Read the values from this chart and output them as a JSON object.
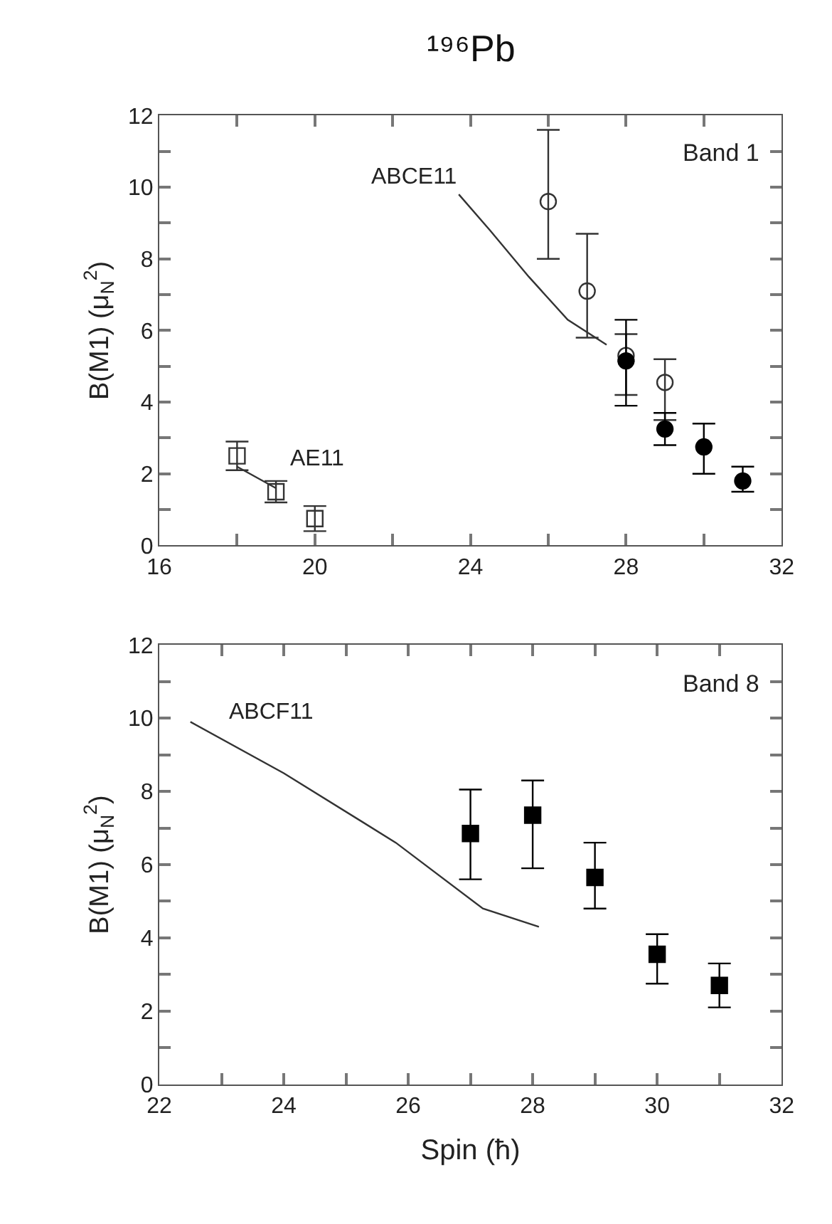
{
  "chart_data": [
    {
      "type": "scatter",
      "title": "¹⁹⁶Pb",
      "ylabel": "B(M1) (μ$_{N}$$^{2}$)",
      "xlim": [
        16,
        32
      ],
      "ylim": [
        0,
        12
      ],
      "xticks": [
        16,
        {
          "value": 18,
          "label": null
        },
        20,
        {
          "value": 22,
          "label": null
        },
        24,
        {
          "value": 26,
          "label": null
        },
        28,
        {
          "value": 30,
          "label": null
        },
        32
      ],
      "yticks": [
        0,
        {
          "value": 1,
          "label": null
        },
        2,
        {
          "value": 3,
          "label": null
        },
        4,
        {
          "value": 5,
          "label": null
        },
        6,
        {
          "value": 7,
          "label": null
        },
        8,
        {
          "value": 9,
          "label": null
        },
        10,
        {
          "value": 11,
          "label": null
        },
        12
      ],
      "series": [
        {
          "type": "line",
          "color": "#333333",
          "marker": "none",
          "x": [
            18,
            19
          ],
          "values": [
            2.2,
            1.6
          ]
        },
        {
          "type": "line",
          "color": "#333333",
          "marker": "none",
          "x": [
            23.7,
            24.5,
            25.5,
            26.5,
            27.5
          ],
          "values": [
            9.8,
            8.8,
            7.5,
            6.3,
            5.6
          ]
        },
        {
          "color": "#333333",
          "marker": "square-open",
          "x": [
            18,
            19,
            20
          ],
          "values": [
            2.5,
            1.5,
            0.75
          ],
          "errors": [
            [
              2.1,
              2.9
            ],
            [
              1.2,
              1.8
            ],
            [
              0.4,
              1.1
            ]
          ]
        },
        {
          "color": "#333333",
          "marker": "circle-open",
          "x": [
            26,
            27,
            28,
            29
          ],
          "values": [
            9.6,
            7.1,
            5.3,
            4.55
          ],
          "errors": [
            [
              8.0,
              11.6
            ],
            [
              5.8,
              8.7
            ],
            [
              4.2,
              5.9
            ],
            [
              3.5,
              5.2
            ]
          ]
        },
        {
          "color": "#000000",
          "marker": "circle",
          "x": [
            28,
            29,
            30,
            31
          ],
          "values": [
            5.15,
            3.25,
            2.75,
            1.8
          ],
          "errors": [
            [
              3.9,
              6.3
            ],
            [
              2.8,
              3.7
            ],
            [
              2.0,
              3.4
            ],
            [
              1.5,
              2.2
            ]
          ]
        }
      ],
      "annotations": [
        {
          "text": "ABCE11",
          "x": 23.7,
          "y": 9.8
        },
        {
          "text": "AE11",
          "x": 19,
          "y": 1.6
        },
        "Band 1"
      ]
    },
    {
      "type": "scatter",
      "xlabel": "Spin (ħ)",
      "ylabel": "B(M1) (μ$_{N}$$^{2}$)",
      "xlim": [
        22,
        32
      ],
      "ylim": [
        0,
        12
      ],
      "xticks": [
        22,
        {
          "value": 23,
          "label": null
        },
        24,
        {
          "value": 25,
          "label": null
        },
        26,
        {
          "value": 27,
          "label": null
        },
        28,
        {
          "value": 29,
          "label": null
        },
        30,
        {
          "value": 31,
          "label": null
        },
        32
      ],
      "yticks": [
        0,
        {
          "value": 1,
          "label": null
        },
        2,
        {
          "value": 3,
          "label": null
        },
        4,
        {
          "value": 5,
          "label": null
        },
        6,
        {
          "value": 7,
          "label": null
        },
        8,
        {
          "value": 9,
          "label": null
        },
        10,
        {
          "value": 11,
          "label": null
        },
        12
      ],
      "series": [
        {
          "type": "line",
          "color": "#333333",
          "marker": "none",
          "x": [
            22.5,
            24,
            25.8,
            27.2,
            28.1
          ],
          "values": [
            9.9,
            8.5,
            6.6,
            4.8,
            4.3
          ]
        },
        {
          "color": "#000000",
          "marker": "square",
          "x": [
            27,
            28,
            29,
            30,
            31
          ],
          "values": [
            6.85,
            7.35,
            5.65,
            3.55,
            2.7
          ],
          "errors": [
            [
              5.6,
              8.05
            ],
            [
              5.9,
              8.3
            ],
            [
              4.8,
              6.6
            ],
            [
              2.75,
              4.1
            ],
            [
              2.1,
              3.3
            ]
          ]
        }
      ],
      "annotations": [
        {
          "text": "ABCF11",
          "x": 22.5,
          "y": 9.9
        },
        "Band 8"
      ]
    }
  ]
}
